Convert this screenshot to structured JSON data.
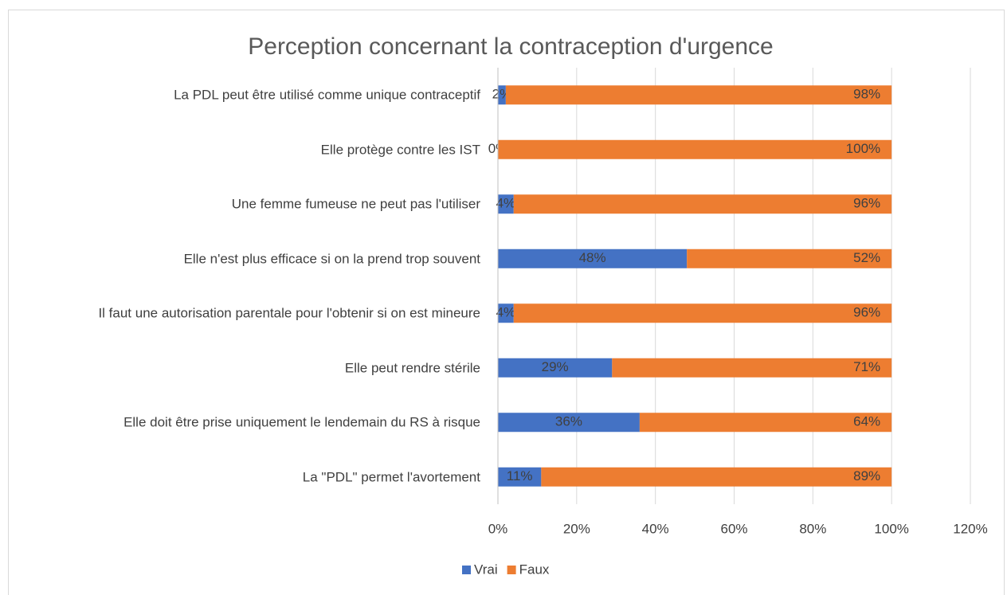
{
  "chart_data": {
    "type": "stacked_barh",
    "title": "Perception concernant la contraception d'urgence",
    "categories": [
      "La PDL peut être utilisé comme unique contraceptif",
      "Elle protège contre les IST",
      "Une femme fumeuse ne peut pas l'utiliser",
      "Elle n'est plus efficace si on la prend trop souvent",
      "Il faut une autorisation parentale pour l'obtenir si on est mineure",
      "Elle peut rendre stérile",
      "Elle doit être prise uniquement le lendemain du RS à risque",
      "La \"PDL\" permet l'avortement"
    ],
    "series": [
      {
        "name": "Vrai",
        "color": "#4472c4",
        "values": [
          2,
          0,
          4,
          48,
          4,
          29,
          36,
          11
        ],
        "value_labels": [
          "2%",
          "0%",
          "4%",
          "48%",
          "4%",
          "29%",
          "36%",
          "11%"
        ]
      },
      {
        "name": "Faux",
        "color": "#ed7d31",
        "values": [
          98,
          100,
          96,
          52,
          96,
          71,
          64,
          89
        ],
        "value_labels": [
          "98%",
          "100%",
          "96%",
          "52%",
          "96%",
          "71%",
          "64%",
          "89%"
        ]
      }
    ],
    "xlim": [
      0,
      120
    ],
    "xticks": [
      {
        "value": 0,
        "label": "0%"
      },
      {
        "value": 20,
        "label": "20%"
      },
      {
        "value": 40,
        "label": "40%"
      },
      {
        "value": 60,
        "label": "60%"
      },
      {
        "value": 80,
        "label": "80%"
      },
      {
        "value": 100,
        "label": "100%"
      },
      {
        "value": 120,
        "label": "120%"
      }
    ],
    "grid": true,
    "legend": "bottom"
  }
}
